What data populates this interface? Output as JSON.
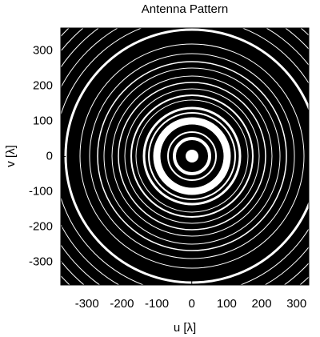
{
  "chart_data": {
    "type": "image",
    "title": "Antenna Pattern",
    "xlabel": "u [λ]",
    "ylabel": "v [λ]",
    "xlim": [
      -375,
      335
    ],
    "ylim": [
      -365,
      365
    ],
    "xticks": [
      -300,
      -200,
      -100,
      0,
      100,
      200,
      300
    ],
    "yticks": [
      -300,
      -200,
      -100,
      0,
      100,
      200,
      300
    ]
  }
}
